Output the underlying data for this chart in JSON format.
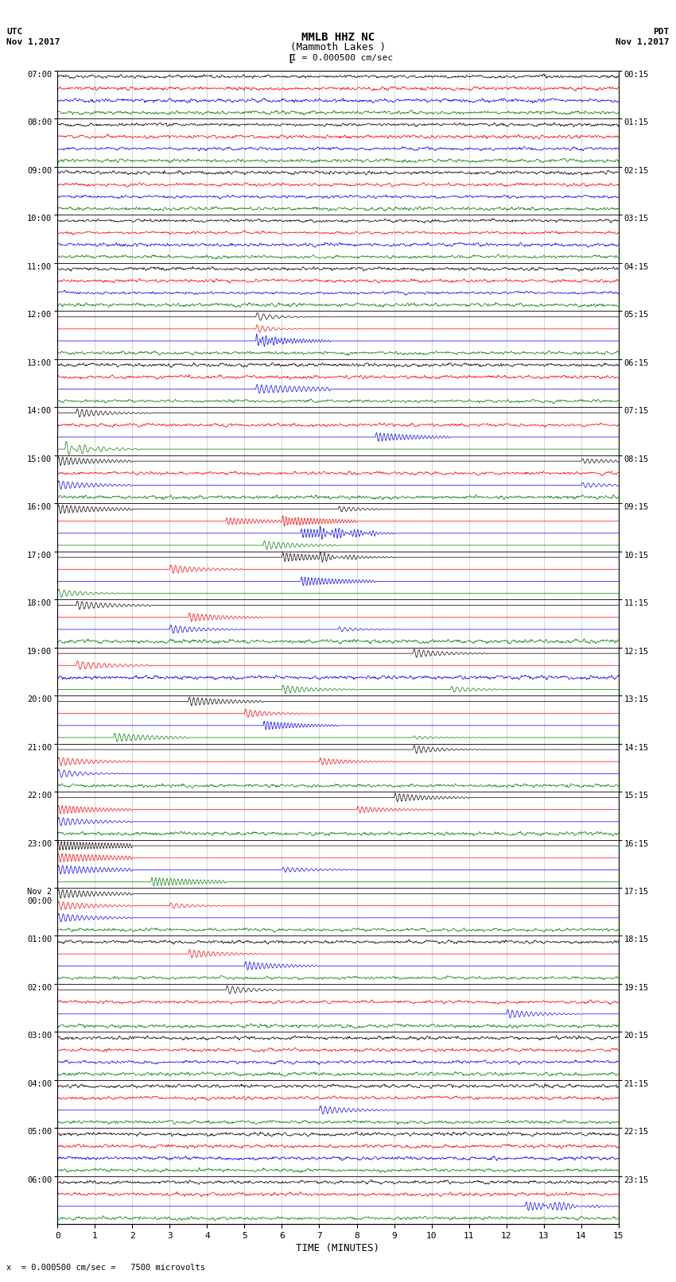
{
  "title_line1": "MMLB HHZ NC",
  "title_line2": "(Mammoth Lakes )",
  "scale_bar_text": "I = 0.000500 cm/sec",
  "left_label_top": "UTC",
  "left_label_date": "Nov 1,2017",
  "right_label_top": "PDT",
  "right_label_date": "Nov 1,2017",
  "footer_label": "= 0.000500 cm/sec =   7500 microvolts",
  "xlabel": "TIME (MINUTES)",
  "utc_hour_labels": [
    "07:00",
    "08:00",
    "09:00",
    "10:00",
    "11:00",
    "12:00",
    "13:00",
    "14:00",
    "15:00",
    "16:00",
    "17:00",
    "18:00",
    "19:00",
    "20:00",
    "21:00",
    "22:00",
    "23:00",
    "Nov 2\n00:00",
    "01:00",
    "02:00",
    "03:00",
    "04:00",
    "05:00",
    "06:00"
  ],
  "pdt_hour_labels": [
    "00:15",
    "01:15",
    "02:15",
    "03:15",
    "04:15",
    "05:15",
    "06:15",
    "07:15",
    "08:15",
    "09:15",
    "10:15",
    "11:15",
    "12:15",
    "13:15",
    "14:15",
    "15:15",
    "16:15",
    "17:15",
    "18:15",
    "19:15",
    "20:15",
    "21:15",
    "22:15",
    "23:15"
  ],
  "trace_colors": [
    "black",
    "red",
    "blue",
    "green"
  ],
  "n_hours": 24,
  "n_minutes": 15,
  "background_color": "#ffffff",
  "grid_color": "#888888",
  "noise_base": 0.018,
  "seed": 12345,
  "fig_width": 8.5,
  "fig_height": 16.13
}
